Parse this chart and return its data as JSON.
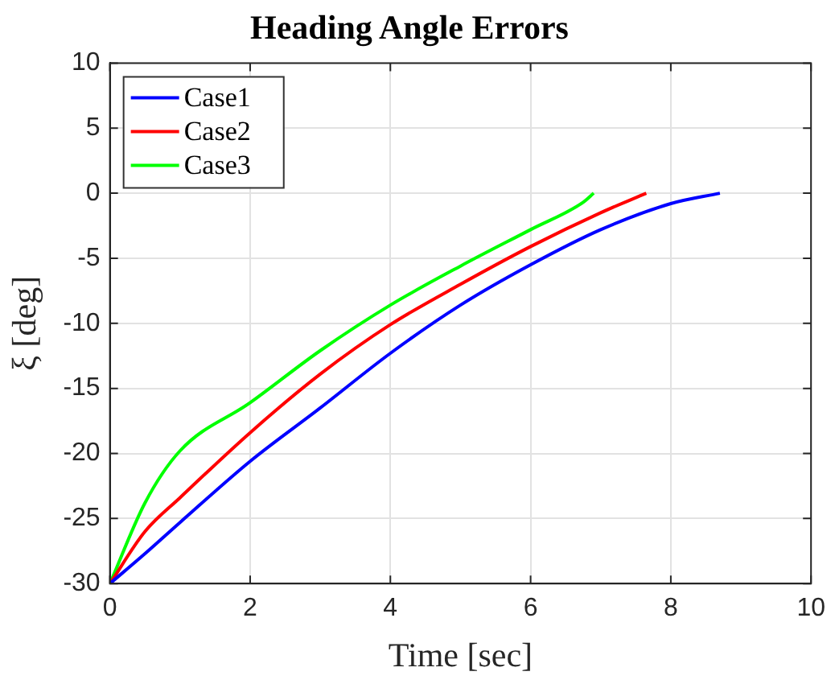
{
  "chart_data": {
    "type": "line",
    "title": "Heading Angle Errors",
    "xlabel": "Time [sec]",
    "ylabel": "ξ [deg]",
    "xlim": [
      0,
      10
    ],
    "xticks": [
      0,
      2,
      4,
      6,
      8,
      10
    ],
    "ylim": [
      -30,
      10
    ],
    "yticks": [
      -30,
      -25,
      -20,
      -15,
      -10,
      -5,
      0,
      5,
      10
    ],
    "grid": true,
    "legend": "top left",
    "marker": "none",
    "line_style": "solid",
    "series": [
      {
        "name": "Case1",
        "color": "#0000ff",
        "x": [
          0,
          0.5,
          1,
          2,
          3,
          4,
          5,
          6,
          7,
          8,
          8.7
        ],
        "values": [
          -30,
          -27.7,
          -25.3,
          -20.6,
          -16.5,
          -12.3,
          -8.6,
          -5.5,
          -2.8,
          -0.8,
          0
        ]
      },
      {
        "name": "Case2",
        "color": "#ff0000",
        "x": [
          0,
          0.5,
          1,
          2,
          3,
          4,
          5,
          6,
          7,
          7.65
        ],
        "values": [
          -30,
          -26,
          -23.4,
          -18.4,
          -13.9,
          -10.1,
          -7,
          -4.1,
          -1.5,
          0
        ]
      },
      {
        "name": "Case3",
        "color": "#00ff00",
        "x": [
          0,
          0.5,
          1,
          2,
          3,
          4,
          5,
          6,
          6.75,
          6.9
        ],
        "values": [
          -30,
          -23.8,
          -19.8,
          -16.1,
          -12.1,
          -8.6,
          -5.6,
          -2.8,
          -0.7,
          0
        ]
      }
    ]
  }
}
